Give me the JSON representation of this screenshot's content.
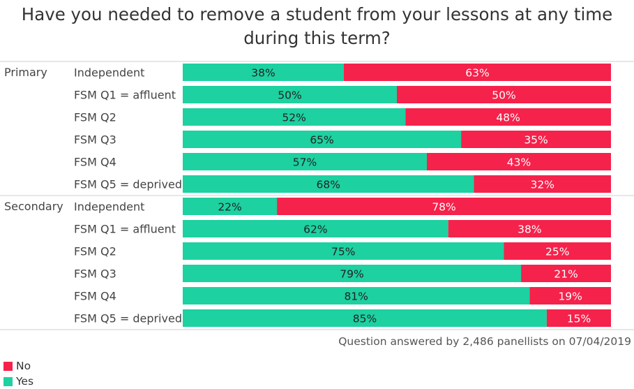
{
  "colors": {
    "yes": "#1dd1a1",
    "no": "#f5224b",
    "divider": "#cfcfcf"
  },
  "chart_data": {
    "type": "bar",
    "orientation": "horizontal",
    "stacked": true,
    "title": "Have you needed to remove a student from your lessons at any time during this term?",
    "groups": [
      {
        "name": "Primary",
        "categories": [
          "Independent",
          "FSM Q1 = affluent",
          "FSM Q2",
          "FSM Q3",
          "FSM Q4",
          "FSM Q5 = deprived"
        ],
        "series": [
          {
            "name": "Yes",
            "values": [
              38,
              50,
              52,
              65,
              57,
              68
            ]
          },
          {
            "name": "No",
            "values": [
              63,
              50,
              48,
              35,
              43,
              32
            ]
          }
        ]
      },
      {
        "name": "Secondary",
        "categories": [
          "Independent",
          "FSM Q1 = affluent",
          "FSM Q2",
          "FSM Q3",
          "FSM Q4",
          "FSM Q5 = deprived"
        ],
        "series": [
          {
            "name": "Yes",
            "values": [
              22,
              62,
              75,
              79,
              81,
              85
            ]
          },
          {
            "name": "No",
            "values": [
              78,
              38,
              25,
              21,
              19,
              15
            ]
          }
        ]
      }
    ],
    "value_suffix": "%",
    "legend": [
      {
        "name": "No",
        "color_key": "no"
      },
      {
        "name": "Yes",
        "color_key": "yes"
      }
    ],
    "legend_position": "bottom-left"
  },
  "footnote": "Question answered by 2,486 panellists on 07/04/2019"
}
